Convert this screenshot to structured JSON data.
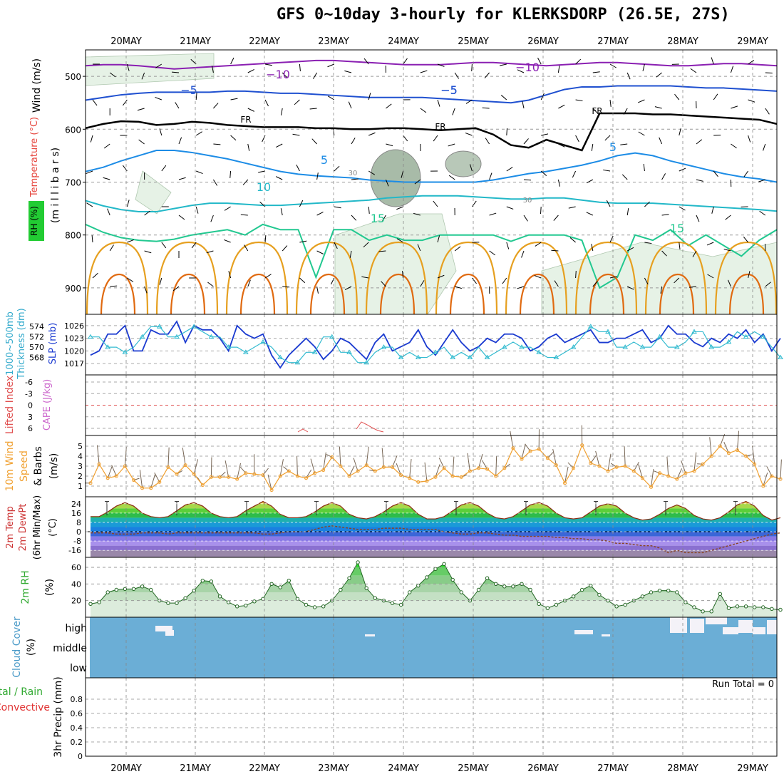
{
  "title": "GFS 0~10day 3-hourly for KLERKSDORP (26.5E, 27S)",
  "dates": [
    "20MAY",
    "21MAY",
    "22MAY",
    "23MAY",
    "24MAY",
    "25MAY",
    "26MAY",
    "27MAY",
    "28MAY",
    "29MAY"
  ],
  "colors": {
    "rh_fill": "#e6f2e6",
    "temp_neg10": "#8a1fb2",
    "temp_neg5": "#1f50d0",
    "temp_fr": "#000000",
    "temp_5": "#1c8ce6",
    "temp_10": "#22b8c8",
    "temp_15": "#22c890",
    "temp_20": "#e6a020",
    "temp_25": "#e06a10",
    "slp": "#1a3ad0",
    "thickness": "#33bbd0",
    "wind10": "#f0a030",
    "rh2m": "#33cc33",
    "cloud": "#6baed6"
  },
  "labels": {
    "p1_wind": "Wind (m/s)",
    "p1_temp": "Temperature (°C)",
    "p1_rh": "RH (%)",
    "p1_mb": "(m i l l i b a r s)",
    "p2_thick": "1000~500mb",
    "p2_thick2": "Thickness (dm)",
    "p2_slp": "SLP (mb)",
    "p3_li": "Lifted Index",
    "p3_cape": "CAPE (J/kg)",
    "p4_a": "10m Wind",
    "p4_b": "Speed",
    "p4_c": "& Barbs",
    "p4_unit": "(m/s)",
    "p5_a": "2m Temp",
    "p5_b": "2m DewPt",
    "p5_c": "(6hr Min/Max)",
    "p5_unit": "(°C)",
    "p6_a": "2m RH",
    "p6_unit": "(%)",
    "p7_a": "Cloud Cover",
    "p7_unit": "(%)",
    "p8_a": "Total / Rain",
    "p8_b": "Convective",
    "p8_c": "3hr Precip (mm)",
    "run_total": "Run Total = 0"
  },
  "contour_labels": [
    "−10",
    "−10",
    "−5",
    "−5",
    "−5",
    "FR",
    "FR",
    "FR",
    "5",
    "5",
    "10",
    "15",
    "15",
    "30",
    "30"
  ],
  "chart_data": [
    {
      "type": "heatmap",
      "name_note": "upper-air cross section",
      "y_ticks": [
        500,
        600,
        700,
        800,
        900
      ],
      "ylim": [
        450,
        950
      ],
      "isotherms": [
        {
          "label": "−10",
          "p": [
            480,
            478,
            478,
            480,
            483,
            486,
            484,
            482,
            480,
            478,
            476,
            474,
            472,
            470,
            470,
            472,
            474,
            476,
            478,
            478,
            478,
            476,
            474,
            474,
            476,
            478,
            480,
            478,
            476,
            474,
            474,
            476,
            478,
            480,
            480,
            478,
            476,
            476,
            478,
            480
          ]
        },
        {
          "label": "−5",
          "p": [
            545,
            540,
            535,
            532,
            530,
            530,
            530,
            530,
            528,
            528,
            530,
            532,
            532,
            534,
            536,
            538,
            540,
            540,
            540,
            540,
            542,
            544,
            546,
            548,
            550,
            545,
            535,
            525,
            520,
            520,
            518,
            518,
            518,
            518,
            520,
            522,
            522,
            524,
            526,
            528
          ]
        },
        {
          "label": "FR",
          "p": [
            598,
            590,
            585,
            586,
            592,
            590,
            586,
            588,
            592,
            594,
            596,
            596,
            596,
            598,
            598,
            600,
            600,
            598,
            598,
            600,
            602,
            600,
            598,
            610,
            630,
            635,
            620,
            630,
            640,
            570,
            570,
            570,
            572,
            572,
            574,
            576,
            578,
            580,
            582,
            590
          ]
        },
        {
          "label": "5",
          "p": [
            680,
            672,
            660,
            650,
            640,
            640,
            644,
            650,
            656,
            664,
            672,
            680,
            685,
            688,
            690,
            692,
            696,
            698,
            700,
            700,
            700,
            700,
            700,
            696,
            690,
            684,
            680,
            674,
            668,
            660,
            650,
            645,
            650,
            660,
            668,
            676,
            684,
            690,
            694,
            700
          ]
        },
        {
          "label": "10",
          "p": [
            735,
            745,
            752,
            756,
            756,
            750,
            744,
            740,
            740,
            742,
            744,
            744,
            742,
            740,
            738,
            736,
            734,
            730,
            728,
            726,
            726,
            726,
            728,
            730,
            732,
            732,
            730,
            730,
            734,
            738,
            740,
            740,
            740,
            742,
            744,
            746,
            748,
            750,
            752,
            755
          ]
        },
        {
          "label": "15",
          "p": [
            780,
            795,
            805,
            810,
            812,
            808,
            800,
            795,
            790,
            800,
            780,
            790,
            790,
            880,
            790,
            790,
            810,
            800,
            810,
            810,
            800,
            800,
            800,
            800,
            812,
            800,
            800,
            800,
            810,
            900,
            880,
            800,
            810,
            790,
            820,
            800,
            820,
            840,
            810,
            790
          ]
        }
      ]
    },
    {
      "type": "line",
      "x_ticks_left": [
        574,
        572,
        570,
        568
      ],
      "y_ticks_right": [
        1026,
        1023,
        1020,
        1017
      ],
      "series": [
        {
          "name": "SLP",
          "values": [
            1019,
            1020,
            1024,
            1024,
            1026,
            1020,
            1020,
            1025,
            1024,
            1024,
            1027,
            1022,
            1026,
            1025,
            1025,
            1023,
            1020,
            1026,
            1024,
            1023,
            1024,
            1019,
            1016,
            1019,
            1021,
            1023,
            1021,
            1018,
            1020,
            1023,
            1022,
            1020,
            1018,
            1022,
            1024,
            1020,
            1021,
            1022,
            1025,
            1021,
            1019,
            1022,
            1025,
            1022,
            1020,
            1021,
            1023,
            1022,
            1024,
            1024,
            1023,
            1020,
            1021,
            1023,
            1024,
            1022,
            1023,
            1024,
            1025,
            1022,
            1022,
            1023,
            1023,
            1024,
            1025,
            1022,
            1023,
            1026,
            1024,
            1024,
            1022,
            1021,
            1023,
            1022,
            1024,
            1023,
            1025,
            1022,
            1024,
            1020,
            1023
          ]
        },
        {
          "name": "Thickness",
          "values": [
            572,
            572,
            570,
            570,
            569,
            570,
            572,
            574,
            574,
            572,
            572,
            573,
            574,
            573,
            572,
            572,
            570,
            570,
            569,
            570,
            571,
            570,
            568,
            567,
            567,
            569,
            569,
            572,
            572,
            569,
            569,
            567,
            567,
            569,
            570,
            570,
            568,
            569,
            568,
            568,
            569,
            570,
            568,
            569,
            568,
            570,
            568,
            569,
            570,
            571,
            570,
            570,
            569,
            568,
            568,
            569,
            570,
            572,
            574,
            573,
            573,
            570,
            570,
            571,
            570,
            570,
            572,
            570,
            570,
            571,
            573,
            573,
            570,
            570,
            571,
            573,
            572,
            573,
            572,
            570,
            568
          ]
        }
      ]
    },
    {
      "type": "line",
      "y_ticks": [
        "-6",
        "-3",
        "0",
        "3",
        "6"
      ],
      "ylim": [
        -6,
        6
      ],
      "series": [
        {
          "name": "CAPE",
          "values": [
            0,
            0,
            0,
            0,
            0,
            0,
            0,
            0,
            0,
            0,
            0,
            0,
            0,
            0,
            0,
            0,
            0,
            0,
            0,
            0,
            0,
            0,
            0,
            0,
            0,
            0,
            0,
            0,
            0,
            0,
            0,
            0,
            0,
            0,
            0,
            0,
            0,
            0,
            0,
            0,
            0,
            0,
            0,
            0,
            0,
            0,
            0,
            0,
            0,
            0,
            0,
            0,
            0,
            0,
            0,
            0,
            0,
            0,
            0,
            0,
            0,
            0,
            0,
            0,
            0,
            0,
            0,
            0,
            0,
            0,
            0,
            0,
            0,
            0,
            0,
            0,
            0,
            0,
            0,
            0,
            0
          ]
        }
      ]
    },
    {
      "type": "line",
      "y_ticks": [
        1,
        2,
        3,
        4,
        5
      ],
      "ylim": [
        0.5,
        5.5
      ],
      "series": [
        {
          "name": "10m Wind Speed",
          "values": [
            1.3,
            3.2,
            1.8,
            2.0,
            3.0,
            1.6,
            0.8,
            0.8,
            1.4,
            2.9,
            2.2,
            3.1,
            2.2,
            1.1,
            1.9,
            1.9,
            1.9,
            1.7,
            2.3,
            2.2,
            2.1,
            0.6,
            2.0,
            2.5,
            2.0,
            1.8,
            2.3,
            2.6,
            3.9,
            3.0,
            2.0,
            2.5,
            3.1,
            2.5,
            2.9,
            2.9,
            2.1,
            1.8,
            1.4,
            1.5,
            1.9,
            2.8,
            2.0,
            1.9,
            2.5,
            2.8,
            2.7,
            2.0,
            2.8,
            4.8,
            3.7,
            4.5,
            4.7,
            3.8,
            3.1,
            1.3,
            2.8,
            5.1,
            3.3,
            3.0,
            2.5,
            2.9,
            3.0,
            2.5,
            1.8,
            0.9,
            2.3,
            2.0,
            1.7,
            2.3,
            2.5,
            3.2,
            4.0,
            5.0,
            4.3,
            4.6,
            4.0,
            3.2,
            1.0,
            2.0,
            1.7
          ]
        }
      ]
    },
    {
      "type": "area",
      "y_ticks": [
        24,
        16,
        8,
        0,
        -8,
        -16
      ],
      "ylim": [
        -22,
        30
      ],
      "series": [
        {
          "name": "2m Temp",
          "values": [
            13,
            13,
            17,
            22,
            25,
            22,
            16,
            13,
            12,
            13,
            18,
            23,
            25,
            22,
            16,
            13,
            12,
            13,
            18,
            22,
            26,
            22,
            15,
            12,
            12,
            13,
            17,
            22,
            25,
            22,
            15,
            12,
            11,
            13,
            17,
            22,
            25,
            22,
            15,
            11,
            11,
            13,
            18,
            23,
            25,
            22,
            16,
            12,
            11,
            13,
            18,
            23,
            25,
            22,
            16,
            12,
            11,
            12,
            17,
            22,
            24,
            22,
            16,
            12,
            10,
            11,
            15,
            20,
            23,
            20,
            14,
            11,
            10,
            12,
            17,
            23,
            26,
            22,
            14,
            10,
            12
          ]
        },
        {
          "name": "2m DewPt",
          "values": [
            -1,
            -1,
            -1,
            -2,
            -2,
            -2,
            -1,
            -1,
            -1,
            -2,
            -1,
            -1,
            -1,
            -1,
            -1,
            -1,
            -1,
            -1,
            -1,
            -1,
            -2,
            -2,
            -1,
            0,
            0,
            0,
            2,
            4,
            5,
            4,
            3,
            2,
            2,
            2,
            3,
            3,
            3,
            2,
            2,
            2,
            2,
            0,
            -1,
            -2,
            -2,
            -1,
            -1,
            -2,
            -3,
            -3,
            -4,
            -4,
            -4,
            -4,
            -5,
            -5,
            -6,
            -6,
            -7,
            -7,
            -8,
            -10,
            -10,
            -11,
            -12,
            -12,
            -14,
            -18,
            -16,
            -18,
            -18,
            -18,
            -16,
            -14,
            -12,
            -10,
            -8,
            -6,
            -4,
            -2,
            -1
          ]
        }
      ]
    },
    {
      "type": "area",
      "y_ticks": [
        60,
        40,
        20
      ],
      "ylim": [
        0,
        72
      ],
      "series": [
        {
          "name": "2m RH",
          "values": [
            16,
            18,
            30,
            33,
            34,
            34,
            37,
            33,
            20,
            17,
            17,
            23,
            32,
            44,
            43,
            25,
            18,
            13,
            14,
            19,
            22,
            40,
            36,
            44,
            22,
            15,
            12,
            13,
            20,
            33,
            47,
            66,
            35,
            23,
            20,
            17,
            15,
            30,
            38,
            48,
            58,
            64,
            45,
            30,
            20,
            33,
            47,
            40,
            37,
            37,
            40,
            33,
            16,
            11,
            15,
            20,
            25,
            33,
            38,
            27,
            20,
            13,
            15,
            20,
            25,
            30,
            32,
            32,
            30,
            18,
            12,
            7,
            7,
            28,
            11,
            13,
            13,
            12,
            12,
            10,
            9
          ]
        }
      ]
    },
    {
      "type": "heatmap",
      "y_ticks": [
        "high",
        "middle",
        "low"
      ]
    },
    {
      "type": "bar",
      "y_ticks": [
        0,
        0.2,
        0.4,
        0.6,
        0.8
      ],
      "ylim": [
        0,
        1
      ],
      "values": []
    }
  ]
}
